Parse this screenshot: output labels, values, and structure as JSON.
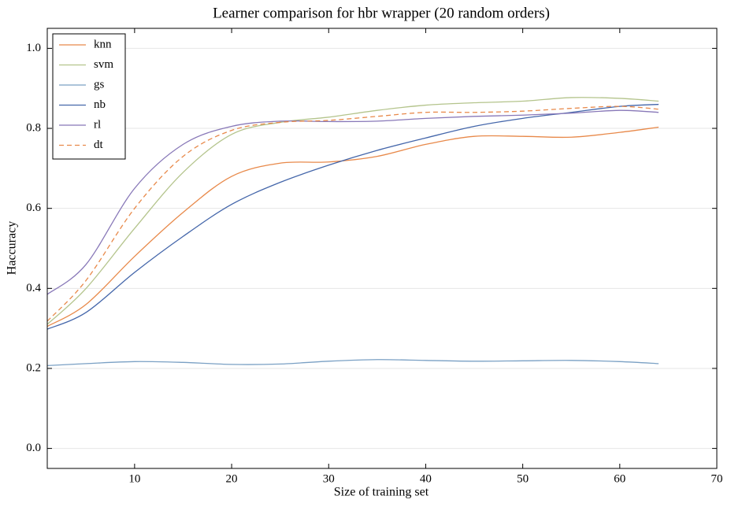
{
  "chart_data": {
    "type": "line",
    "title": "Learner comparison for hbr wrapper (20 random orders)",
    "x_label": "Size of training set",
    "y_label": "Haccuracy",
    "x": [
      1,
      5,
      10,
      15,
      20,
      25,
      30,
      35,
      40,
      45,
      50,
      55,
      60,
      64
    ],
    "series": [
      {
        "name": "knn",
        "color": "#e8894a",
        "dashed": false,
        "values": [
          0.305,
          0.36,
          0.48,
          0.59,
          0.68,
          0.713,
          0.716,
          0.73,
          0.76,
          0.78,
          0.78,
          0.778,
          0.79,
          0.803
        ]
      },
      {
        "name": "svm",
        "color": "#b4c48c",
        "dashed": false,
        "values": [
          0.31,
          0.4,
          0.55,
          0.69,
          0.785,
          0.815,
          0.828,
          0.845,
          0.858,
          0.864,
          0.868,
          0.877,
          0.875,
          0.868
        ]
      },
      {
        "name": "gs",
        "color": "#7aa0c4",
        "dashed": false,
        "values": [
          0.207,
          0.212,
          0.217,
          0.215,
          0.21,
          0.211,
          0.218,
          0.222,
          0.22,
          0.218,
          0.219,
          0.22,
          0.217,
          0.212
        ]
      },
      {
        "name": "nb",
        "color": "#4466aa",
        "dashed": false,
        "values": [
          0.298,
          0.34,
          0.44,
          0.53,
          0.61,
          0.665,
          0.708,
          0.745,
          0.776,
          0.805,
          0.825,
          0.84,
          0.855,
          0.86
        ]
      },
      {
        "name": "rl",
        "color": "#8878b8",
        "dashed": false,
        "values": [
          0.385,
          0.46,
          0.65,
          0.76,
          0.805,
          0.818,
          0.817,
          0.818,
          0.825,
          0.83,
          0.833,
          0.838,
          0.845,
          0.84
        ]
      },
      {
        "name": "dt",
        "color": "#e8894a",
        "dashed": true,
        "values": [
          0.318,
          0.42,
          0.6,
          0.73,
          0.795,
          0.815,
          0.82,
          0.83,
          0.84,
          0.84,
          0.843,
          0.85,
          0.855,
          0.848
        ]
      }
    ],
    "xlim": [
      1,
      70
    ],
    "xticks": [
      10,
      20,
      30,
      40,
      50,
      60,
      70
    ],
    "ylim": [
      -0.05,
      1.05
    ],
    "yticks": [
      {
        "value": 0,
        "label": "0.0"
      },
      0.2,
      0.4,
      0.6,
      0.8,
      {
        "value": 1,
        "label": "1.0"
      }
    ],
    "grid": true,
    "legend": "upper-left"
  }
}
